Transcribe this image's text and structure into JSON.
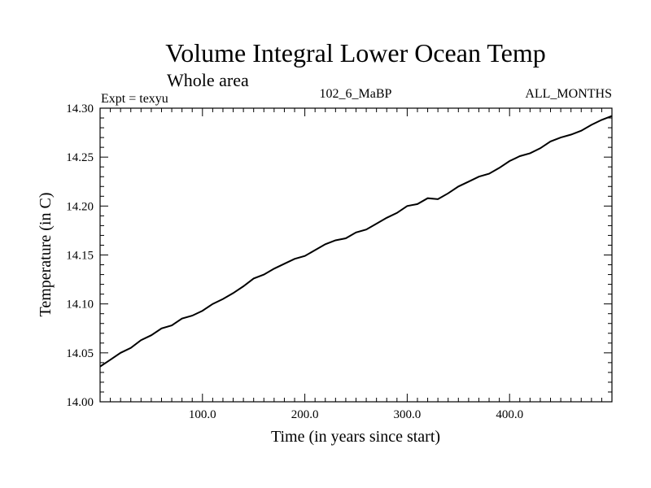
{
  "chart_data": {
    "type": "line",
    "title": "Volume Integral Lower Ocean Temp",
    "subtitle": "Whole area",
    "annotations": {
      "left": "Expt = texyu",
      "center": "102_6_MaBP",
      "right": "ALL_MONTHS"
    },
    "xlabel": "Time (in years since start)",
    "ylabel": "Temperature (in C)",
    "xlim": [
      0,
      500
    ],
    "ylim": [
      14.0,
      14.3
    ],
    "xticks": [
      100,
      200,
      300,
      400
    ],
    "xtick_labels": [
      "100.0",
      "200.0",
      "300.0",
      "400.0"
    ],
    "yticks": [
      14.0,
      14.05,
      14.1,
      14.15,
      14.2,
      14.25,
      14.3
    ],
    "ytick_labels": [
      "14.00",
      "14.05",
      "14.10",
      "14.15",
      "14.20",
      "14.25",
      "14.30"
    ],
    "grid": false,
    "legend": "none",
    "line_color": "#000000",
    "series": [
      {
        "x": [
          0,
          10,
          20,
          30,
          40,
          50,
          60,
          70,
          80,
          90,
          100,
          110,
          120,
          130,
          140,
          150,
          160,
          170,
          180,
          190,
          200,
          210,
          220,
          230,
          240,
          250,
          260,
          270,
          280,
          290,
          300,
          310,
          320,
          330,
          340,
          350,
          360,
          370,
          380,
          390,
          400,
          410,
          420,
          430,
          440,
          450,
          460,
          470,
          480,
          490,
          500
        ],
        "values": [
          14.036,
          14.043,
          14.05,
          14.055,
          14.063,
          14.068,
          14.075,
          14.078,
          14.085,
          14.088,
          14.093,
          14.1,
          14.105,
          14.111,
          14.118,
          14.126,
          14.13,
          14.136,
          14.141,
          14.146,
          14.149,
          14.155,
          14.161,
          14.165,
          14.167,
          14.173,
          14.176,
          14.182,
          14.188,
          14.193,
          14.2,
          14.202,
          14.208,
          14.207,
          14.213,
          14.22,
          14.225,
          14.23,
          14.233,
          14.239,
          14.246,
          14.251,
          14.254,
          14.259,
          14.266,
          14.27,
          14.273,
          14.277,
          14.283,
          14.288,
          14.292
        ]
      }
    ]
  }
}
